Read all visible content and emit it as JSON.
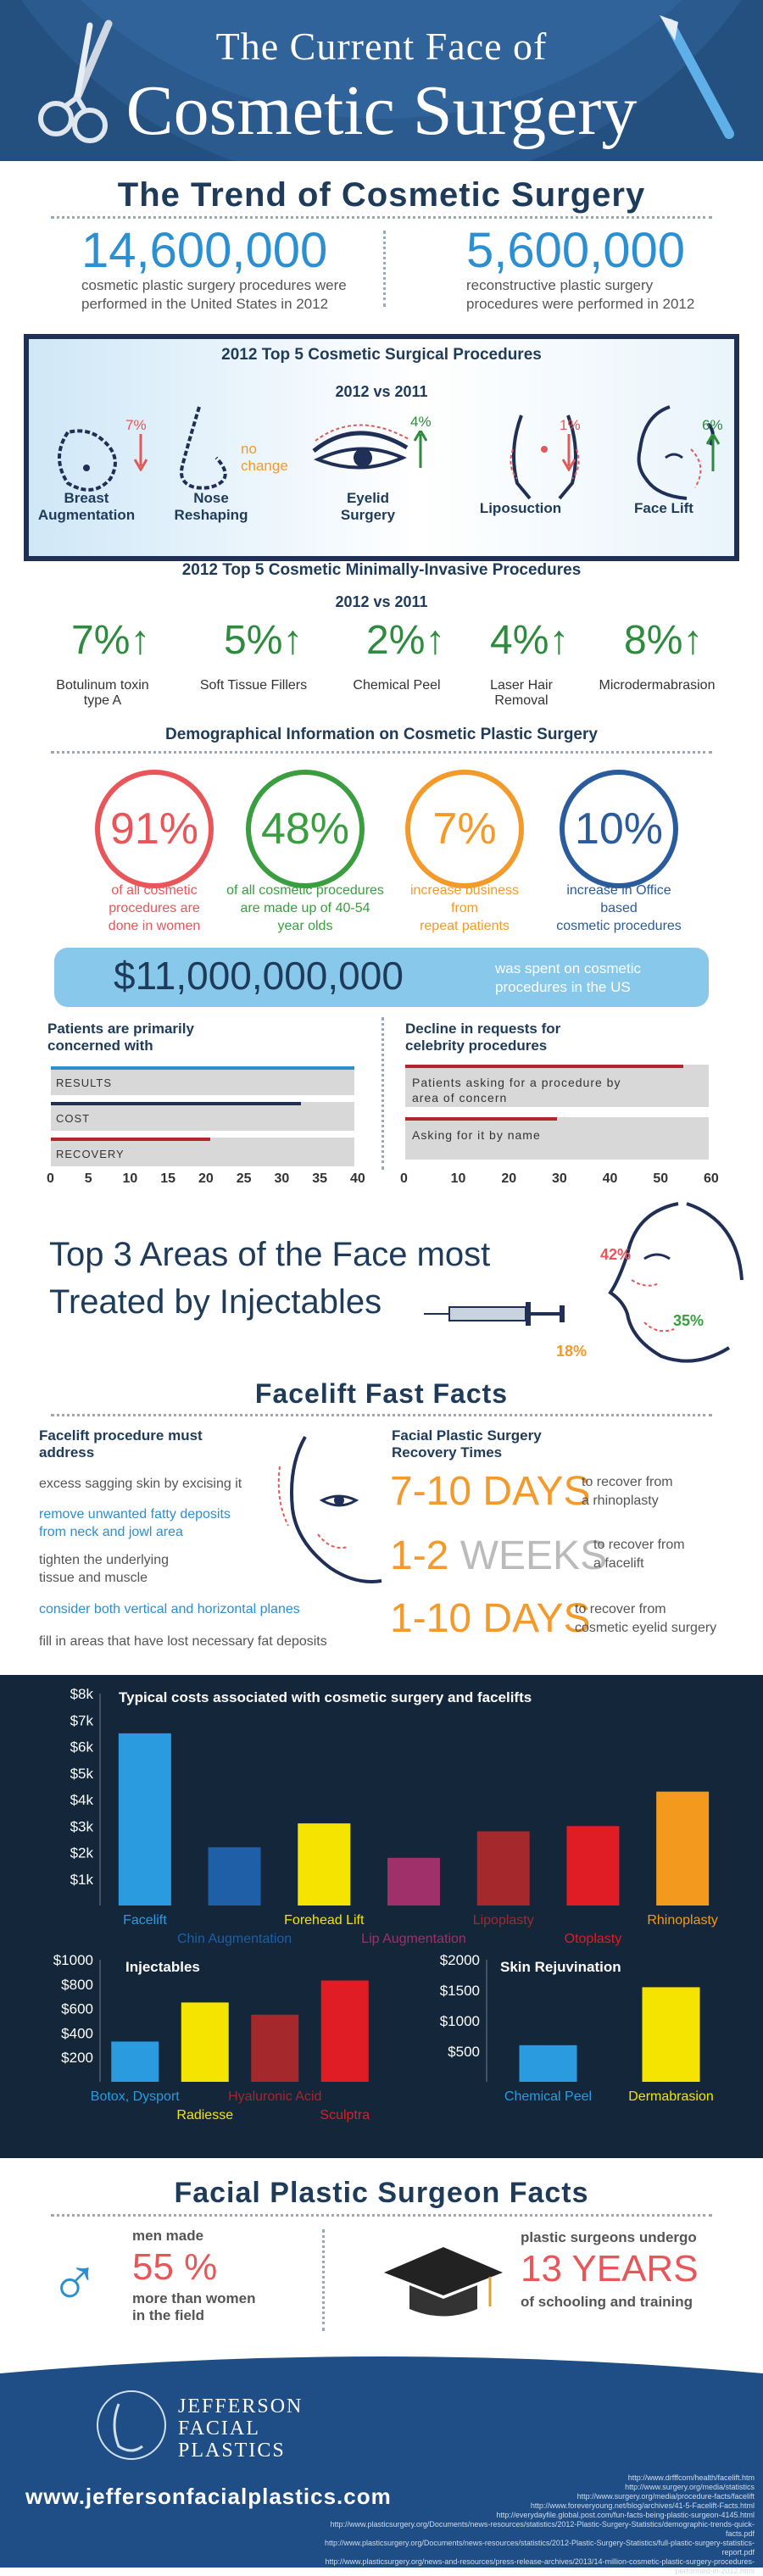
{
  "header": {
    "title_line1": "The Current Face of",
    "title_line2": "Cosmetic Surgery"
  },
  "trend": {
    "title": "The Trend of Cosmetic Surgery",
    "stat1_value": "14,600,000",
    "stat1_text_line1": "cosmetic plastic surgery procedures were",
    "stat1_text_line2": "performed in the United States in 2012",
    "stat2_value": "5,600,000",
    "stat2_text_line1": "reconstructive plastic surgery",
    "stat2_text_line2": "procedures were performed in 2012"
  },
  "surgical": {
    "title": "2012 Top 5 Cosmetic Surgical Procedures",
    "subtitle": "2012 vs 2011",
    "items": [
      {
        "label_line1": "Breast",
        "label_line2": "Augmentation",
        "change": "7%",
        "direction": "down"
      },
      {
        "label_line1": "Nose",
        "label_line2": "Reshaping",
        "change": "no change",
        "direction": "none"
      },
      {
        "label_line1": "Eyelid",
        "label_line2": "Surgery",
        "change": "4%",
        "direction": "up"
      },
      {
        "label_line1": "Liposuction",
        "label_line2": "",
        "change": "1%",
        "direction": "down"
      },
      {
        "label_line1": "Face Lift",
        "label_line2": "",
        "change": "6%",
        "direction": "up"
      }
    ],
    "no_change_line1": "no",
    "no_change_line2": "change"
  },
  "minimal": {
    "title": "2012 Top 5 Cosmetic Minimally-Invasive Procedures",
    "subtitle": "2012 vs 2011",
    "items": [
      {
        "pct": "7%",
        "label_line1": "Botulinum toxin",
        "label_line2": "type A"
      },
      {
        "pct": "5%",
        "label_line1": "Soft Tissue Fillers",
        "label_line2": ""
      },
      {
        "pct": "2%",
        "label_line1": "Chemical Peel",
        "label_line2": ""
      },
      {
        "pct": "4%",
        "label_line1": "Laser Hair",
        "label_line2": "Removal"
      },
      {
        "pct": "8%",
        "label_line1": "Microdermabrasion",
        "label_line2": ""
      }
    ],
    "arrow": "↑"
  },
  "demographic": {
    "title": "Demographical Information on Cosmetic Plastic Surgery",
    "items": [
      {
        "value": "91%",
        "line1": "of all cosmetic",
        "line2": "procedures are",
        "line3": "done in women",
        "color": "#e8565a"
      },
      {
        "value": "48%",
        "line1": "of all cosmetic procedures",
        "line2": "are made up of 40-54",
        "line3": "year olds",
        "color": "#3a9d3f"
      },
      {
        "value": "7%",
        "line1": "increase business",
        "line2": "from",
        "line3": "repeat patients",
        "color": "#f39a2a"
      },
      {
        "value": "10%",
        "line1": "increase in Office",
        "line2": "based",
        "line3": "cosmetic procedures",
        "color": "#2a5b9c"
      }
    ],
    "spent_value": "$11,000,000,000",
    "spent_text_line1": "was spent on cosmetic",
    "spent_text_line2": "procedures in the US"
  },
  "concerns": {
    "left_title_line1": "Patients are primarily",
    "left_title_line2": "concerned with",
    "left_bars": [
      {
        "label": "RESULTS",
        "value": 40,
        "color": "#2b8fd1"
      },
      {
        "label": "COST",
        "value": 33,
        "color": "#1f2f55"
      },
      {
        "label": "RECOVERY",
        "value": 21,
        "color": "#b3262e"
      }
    ],
    "left_ticks": [
      "0",
      "5",
      "10",
      "15",
      "20",
      "25",
      "30",
      "35",
      "40"
    ],
    "right_title_line1": "Decline in requests for",
    "right_title_line2": "celebrity procedures",
    "right_bars": [
      {
        "label_line1": "Patients asking for a procedure by",
        "label_line2": "area of concern",
        "value": 55,
        "color": "#b3262e"
      },
      {
        "label_line1": "Asking for it by name",
        "label_line2": "",
        "value": 30,
        "color": "#b3262e"
      }
    ],
    "right_ticks": [
      "0",
      "10",
      "20",
      "30",
      "40",
      "50",
      "60"
    ]
  },
  "injectables_face": {
    "title_line1": "Top 3 Areas of the Face most",
    "title_line2": "Treated by Injectables",
    "pct1": "42%",
    "pct2": "35%",
    "pct3": "18%"
  },
  "facelift": {
    "title": "Facelift Fast Facts",
    "left_title_line1": "Facelift procedure must",
    "left_title_line2": "address",
    "left_items": [
      {
        "line1": "excess sagging skin by excising it",
        "line2": "",
        "color": "#555"
      },
      {
        "line1": "remove unwanted fatty deposits",
        "line2": "from neck and jowl area",
        "color": "#2b8fd1"
      },
      {
        "line1": "tighten the underlying",
        "line2": "tissue and muscle",
        "color": "#555"
      },
      {
        "line1": "consider both vertical and horizontal planes",
        "line2": "",
        "color": "#2b8fd1"
      },
      {
        "line1": "fill in areas that have lost necessary fat deposits",
        "line2": "",
        "color": "#555"
      }
    ],
    "right_title_line1": "Facial Plastic Surgery",
    "right_title_line2": "Recovery Times",
    "recovery": [
      {
        "num": "7-10",
        "unit": "DAYS",
        "line1": "to recover from",
        "line2": "a rhinoplasty"
      },
      {
        "num": "1-2",
        "unit": "WEEKS",
        "line1": "to recover from",
        "line2": "a facelift"
      },
      {
        "num": "1-10",
        "unit": "DAYS",
        "line1": "to recover from",
        "line2": "cosmetic eyelid surgery"
      }
    ]
  },
  "chart_data": [
    {
      "type": "bar",
      "title": "Typical costs associated with cosmetic surgery and facelifts",
      "categories": [
        "Facelift",
        "Chin Augmentation",
        "Forehead Lift",
        "Lip Augmentation",
        "Lipoplasty",
        "Otoplasty",
        "Rhinoplasty"
      ],
      "values": [
        6500,
        2200,
        3100,
        1800,
        2800,
        3000,
        4300
      ],
      "colors": [
        "#2b9be0",
        "#1e5fa8",
        "#f5e400",
        "#a0306a",
        "#a4282c",
        "#e01c24",
        "#f39a1e"
      ],
      "label_colors": [
        "#2b9be0",
        "#1e5fa8",
        "#f5e400",
        "#a0306a",
        "#a4282c",
        "#e01c24",
        "#f39a1e"
      ],
      "yticks": [
        "$1k",
        "$2k",
        "$3k",
        "$4k",
        "$5k",
        "$6k",
        "$7k",
        "$8k"
      ],
      "ylim": [
        0,
        8000
      ]
    },
    {
      "type": "bar",
      "title": "Injectables",
      "categories": [
        "Botox, Dysport",
        "Radiesse",
        "Hyaluronic Acid",
        "Sculptra"
      ],
      "values": [
        330,
        650,
        550,
        830
      ],
      "colors": [
        "#2b9be0",
        "#f5e400",
        "#a4282c",
        "#e01c24"
      ],
      "label_colors": [
        "#2b9be0",
        "#f5e400",
        "#a4282c",
        "#e01c24"
      ],
      "yticks": [
        "$200",
        "$400",
        "$600",
        "$800",
        "$1000"
      ],
      "ylim": [
        0,
        1000
      ]
    },
    {
      "type": "bar",
      "title": "Skin Rejuvination",
      "categories": [
        "Chemical Peel",
        "Dermabrasion"
      ],
      "values": [
        600,
        1550
      ],
      "colors": [
        "#2b9be0",
        "#f5e400"
      ],
      "label_colors": [
        "#2b9be0",
        "#f5e400"
      ],
      "yticks": [
        "$500",
        "$1000",
        "$1500",
        "$2000"
      ],
      "ylim": [
        0,
        2000
      ]
    }
  ],
  "surgeon": {
    "title": "Facial Plastic Surgeon Facts",
    "men_line1": "men made",
    "men_value": "55 %",
    "men_line2": "more than women",
    "men_line3": "in the field",
    "school_line1": "plastic surgeons undergo",
    "school_value": "13 YEARS",
    "school_line2": "of schooling and training"
  },
  "footer": {
    "brand_line1": "JEFFERSON",
    "brand_line2": "FACIAL",
    "brand_line3": "PLASTICS",
    "website": "www.jeffersonfacialplastics.com",
    "sources": [
      "http://www.drfffcom/health/facelift.htm",
      "http://www.surgery.org/media/statistics",
      "http://www.surgery.org/media/procedure-facts/facelift",
      "http://www.foreveryoung.net/blog/archives/41-5-Facelift-Facts.html",
      "http://everydayfile.global.post.com/fun-facts-being-plastic-surgeon-4145.html",
      "http://www.plasticsurgery.org/Documents/news-resources/statistics/2012-Plastic-Surgery-Statistics/demographic-trends-quick-facts.pdf",
      "http://www.plasticsurgery.org/Documents/news-resources/statistics/2012-Plastic-Surgery-Statistics/full-plastic-surgery-statistics-report.pdf",
      "http://www.plasticsurgery.org/news-and-resources/press-release-archives/2013/14-million-cosmetic-plastic-surgery-procedures-performed-in-2012.html"
    ]
  }
}
